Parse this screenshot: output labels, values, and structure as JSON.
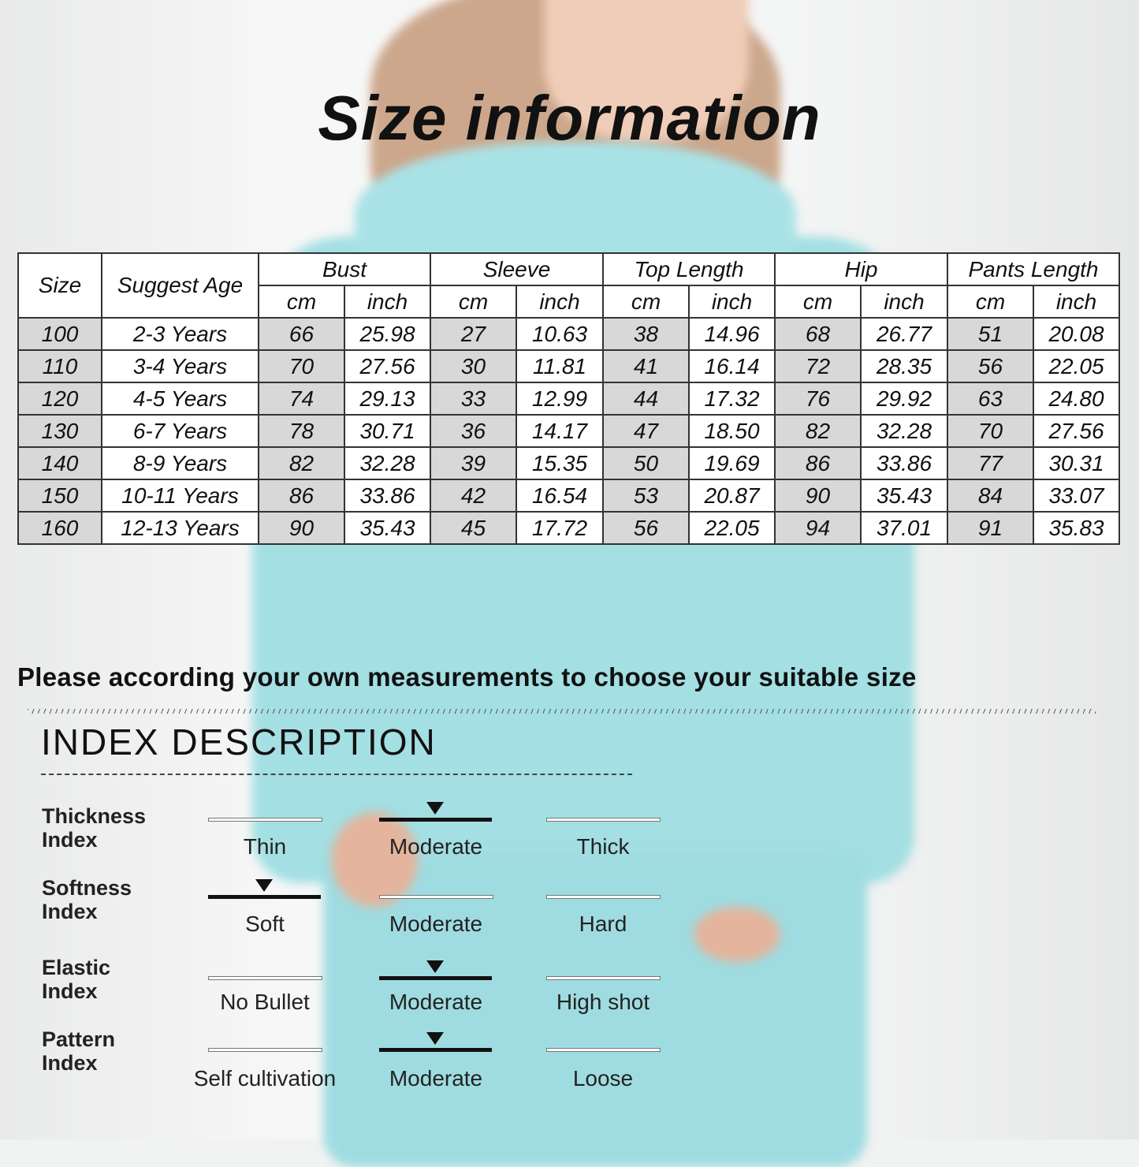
{
  "title": "Size information",
  "table": {
    "headers": {
      "size": "Size",
      "age": "Suggest Age",
      "groups": [
        "Bust",
        "Sleeve",
        "Top Length",
        "Hip",
        "Pants Length"
      ],
      "unit_cm": "cm",
      "unit_inch": "inch"
    },
    "rows": [
      [
        "100",
        "2-3 Years",
        "66",
        "25.98",
        "27",
        "10.63",
        "38",
        "14.96",
        "68",
        "26.77",
        "51",
        "20.08"
      ],
      [
        "110",
        "3-4 Years",
        "70",
        "27.56",
        "30",
        "11.81",
        "41",
        "16.14",
        "72",
        "28.35",
        "56",
        "22.05"
      ],
      [
        "120",
        "4-5 Years",
        "74",
        "29.13",
        "33",
        "12.99",
        "44",
        "17.32",
        "76",
        "29.92",
        "63",
        "24.80"
      ],
      [
        "130",
        "6-7 Years",
        "78",
        "30.71",
        "36",
        "14.17",
        "47",
        "18.50",
        "82",
        "32.28",
        "70",
        "27.56"
      ],
      [
        "140",
        "8-9 Years",
        "82",
        "32.28",
        "39",
        "15.35",
        "50",
        "19.69",
        "86",
        "33.86",
        "77",
        "30.31"
      ],
      [
        "150",
        "10-11 Years",
        "86",
        "33.86",
        "42",
        "16.54",
        "53",
        "20.87",
        "90",
        "35.43",
        "84",
        "33.07"
      ],
      [
        "160",
        "12-13 Years",
        "90",
        "35.43",
        "45",
        "17.72",
        "56",
        "22.05",
        "94",
        "37.01",
        "91",
        "35.83"
      ]
    ]
  },
  "note": "Please according your own measurements to choose your suitable size",
  "index": {
    "title": "INDEX DESCRIPTION",
    "items": [
      {
        "label": [
          "Thickness",
          "Index"
        ],
        "options": [
          "Thin",
          "Moderate",
          "Thick"
        ],
        "selected": 1
      },
      {
        "label": [
          "Softness",
          "Index"
        ],
        "options": [
          "Soft",
          "Moderate",
          "Hard"
        ],
        "selected": 0
      },
      {
        "label": [
          "Elastic",
          "Index"
        ],
        "options": [
          "No Bullet",
          "Moderate",
          "High shot"
        ],
        "selected": 1
      },
      {
        "label": [
          "Pattern",
          "Index"
        ],
        "options": [
          "Self cultivation",
          "Moderate",
          "Loose"
        ],
        "selected": 1
      }
    ]
  },
  "colors": {
    "cell_shade": "#d8d8d8",
    "garment": "#a3dfe3",
    "text": "#111111"
  }
}
